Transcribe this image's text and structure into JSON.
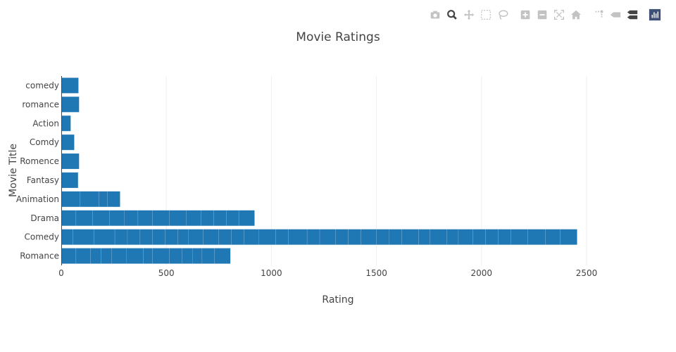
{
  "modebar": {
    "buttons": [
      {
        "name": "camera-icon"
      },
      {
        "name": "zoom-icon",
        "active": true
      },
      {
        "name": "pan-icon"
      },
      {
        "name": "box-select-icon"
      },
      {
        "name": "lasso-select-icon"
      },
      {
        "name": "zoom-in-icon"
      },
      {
        "name": "zoom-out-icon"
      },
      {
        "name": "autoscale-icon"
      },
      {
        "name": "reset-axes-icon"
      },
      {
        "name": "spike-lines-icon"
      },
      {
        "name": "hover-closest-icon"
      },
      {
        "name": "hover-compare-icon"
      },
      {
        "name": "plotly-logo-icon"
      }
    ]
  },
  "chart_data": {
    "type": "bar",
    "orientation": "horizontal",
    "title": "Movie Ratings",
    "xlabel": "Rating",
    "ylabel": "Movie Title",
    "xlim": [
      0,
      2500
    ],
    "xticks": [
      0,
      500,
      1000,
      1500,
      2000,
      2500
    ],
    "grid": true,
    "bar_color": "#1f77b4",
    "categories": [
      "Romance",
      "Comedy",
      "Drama",
      "Animation",
      "Fantasy",
      "Romence",
      "Comdy",
      "Action",
      "romance",
      "comedy"
    ],
    "segments": [
      [
        70,
        70,
        50,
        50,
        70,
        80,
        45,
        80,
        60,
        50,
        45,
        60,
        75
      ],
      [
        55,
        100,
        100,
        60,
        60,
        60,
        60,
        60,
        50,
        70,
        75,
        60,
        60,
        70,
        80,
        60,
        90,
        60,
        75,
        60,
        60,
        75,
        60,
        60,
        80,
        55,
        80,
        55,
        70,
        60,
        60,
        60,
        80,
        85,
        70,
        80
      ],
      [
        70,
        80,
        80,
        70,
        65,
        70,
        80,
        80,
        70,
        60,
        60,
        60,
        75
      ],
      [
        90,
        90,
        40,
        60
      ],
      [
        80
      ],
      [
        85
      ],
      [
        62
      ],
      [
        45
      ],
      [
        85
      ],
      [
        82
      ]
    ]
  }
}
